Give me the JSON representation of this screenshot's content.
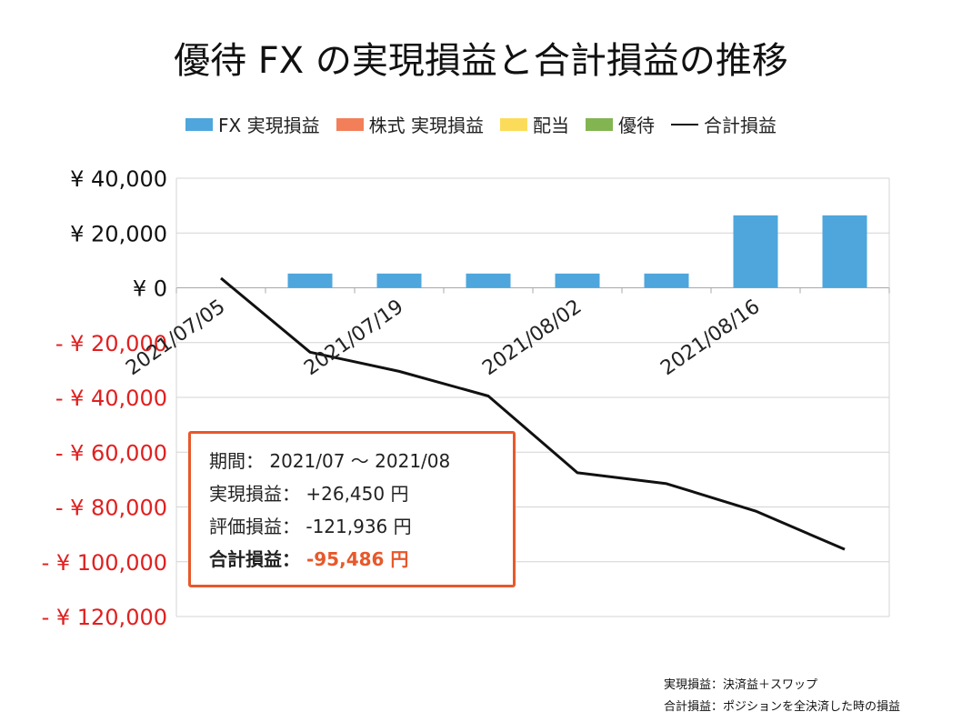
{
  "chart_data": {
    "type": "bar+line",
    "title": "優待 FX の実現損益と合計損益の推移",
    "categories": [
      "2021/07/05",
      "2021/07/12",
      "2021/07/19",
      "2021/07/26",
      "2021/08/02",
      "2021/08/09",
      "2021/08/16",
      "2021/08/23"
    ],
    "x_tick_labels": [
      "2021/07/05",
      "2021/07/19",
      "2021/08/02",
      "2021/08/16"
    ],
    "series": [
      {
        "name": "FX  実現損益",
        "type": "bar",
        "color": "#4ea6dc",
        "values": [
          0,
          5200,
          5200,
          5200,
          5200,
          5200,
          26450,
          26450
        ]
      },
      {
        "name": "株式 実現損益",
        "type": "bar",
        "color": "#f37f5a",
        "values": [
          0,
          0,
          0,
          0,
          0,
          0,
          0,
          0
        ]
      },
      {
        "name": "配当",
        "type": "bar",
        "color": "#fbdc5a",
        "values": [
          0,
          0,
          0,
          0,
          0,
          0,
          0,
          0
        ]
      },
      {
        "name": "優待",
        "type": "bar",
        "color": "#82b552",
        "values": [
          0,
          0,
          0,
          0,
          0,
          0,
          0,
          0
        ]
      },
      {
        "name": "合計損益",
        "type": "line",
        "color": "#111111",
        "values": [
          3500,
          -23500,
          -30500,
          -39500,
          -67500,
          -71500,
          -81500,
          -95486
        ]
      }
    ],
    "ylim": [
      -120000,
      40000
    ],
    "y_ticks": [
      40000,
      20000,
      0,
      -20000,
      -40000,
      -60000,
      -80000,
      -100000,
      -120000
    ],
    "y_tick_labels": [
      "¥ 40,000",
      "¥ 20,000",
      "¥ 0",
      "- ¥ 20,000",
      "- ¥ 40,000",
      "- ¥ 60,000",
      "- ¥ 80,000",
      "- ¥ 100,000",
      "- ¥ 120,000"
    ],
    "positive_tick_color": "#111111",
    "negative_tick_color": "#e02020",
    "grid": true
  },
  "legend": {
    "items": [
      {
        "label": "FX  実現損益",
        "color": "#4ea6dc",
        "kind": "bar"
      },
      {
        "label": "株式 実現損益",
        "color": "#f37f5a",
        "kind": "bar"
      },
      {
        "label": "配当",
        "color": "#fbdc5a",
        "kind": "bar"
      },
      {
        "label": "優待",
        "color": "#82b552",
        "kind": "bar"
      },
      {
        "label": "合計損益",
        "color": "#111111",
        "kind": "line"
      }
    ]
  },
  "summary": {
    "period_label": "期間：",
    "period_value": "2021/07 ～ 2021/08",
    "realized_label": "実現損益：",
    "realized_value": "+26,450 円",
    "unrealized_label": "評価損益：",
    "unrealized_value": "-121,936 円",
    "total_label": "合計損益：",
    "total_value": "-95,486 円",
    "border_color": "#e8582a"
  },
  "footnotes": {
    "line1": "実現損益：決済益＋スワップ",
    "line2": "合計損益：ポジションを全決済した時の損益"
  }
}
